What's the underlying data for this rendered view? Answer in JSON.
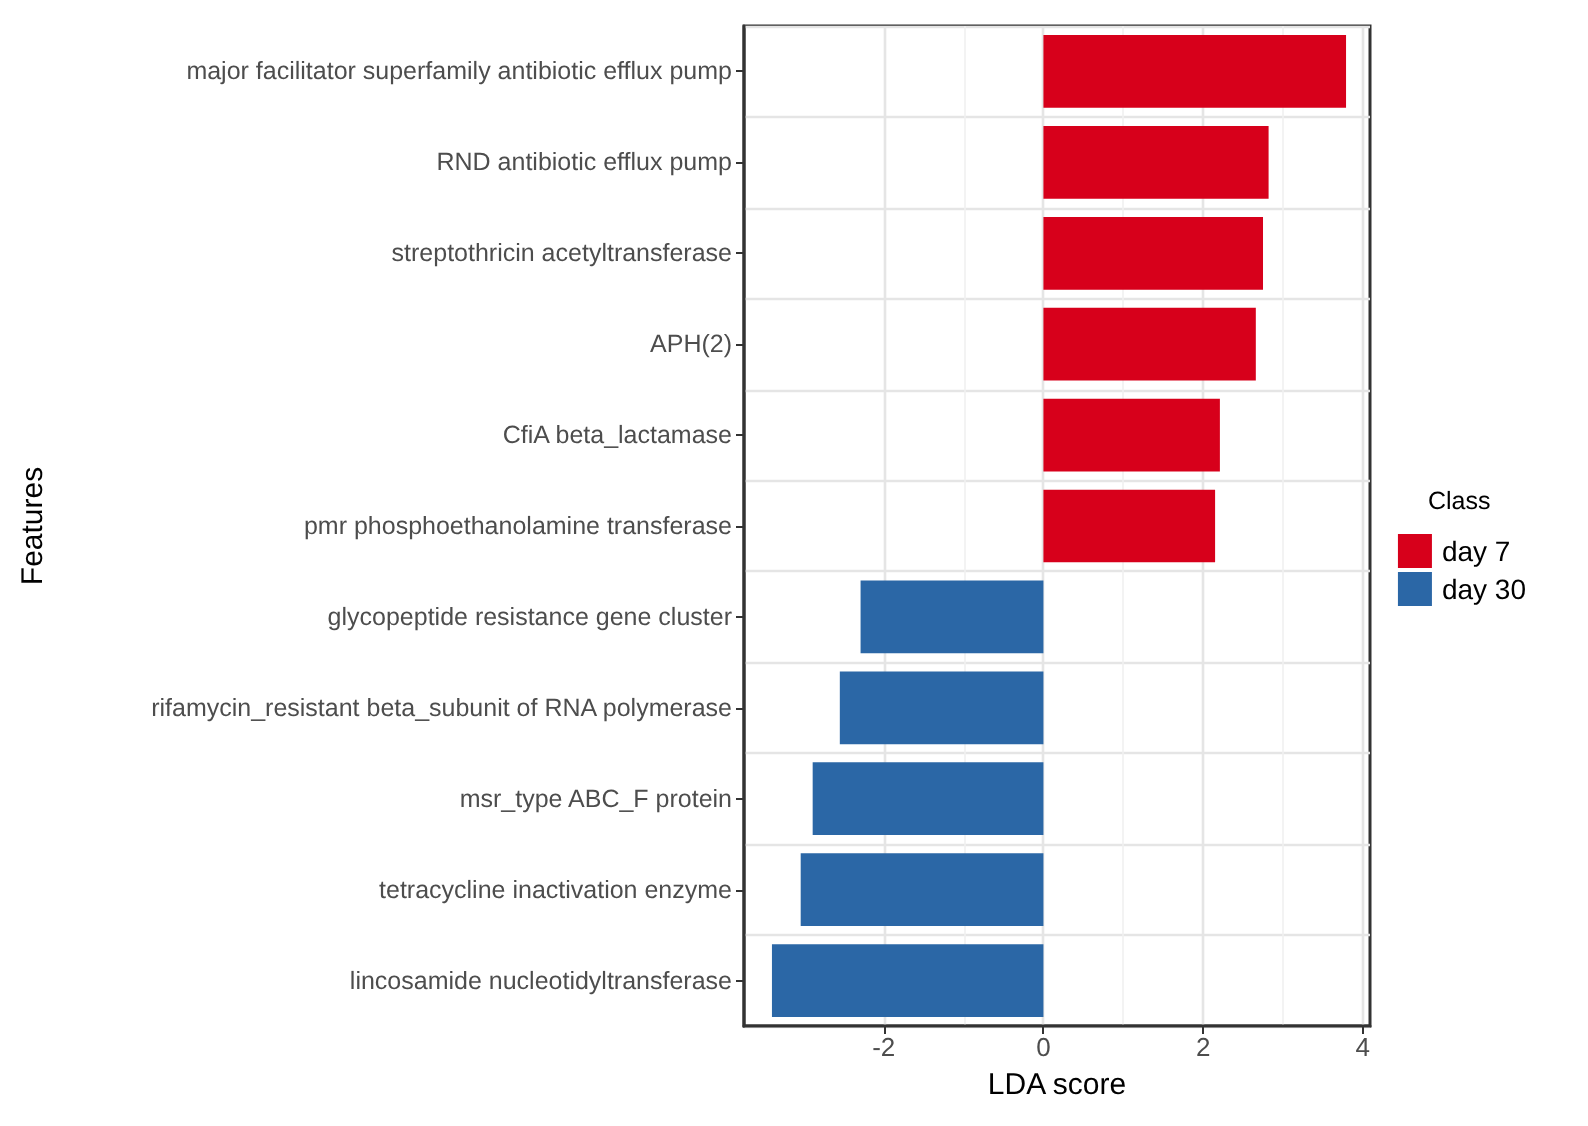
{
  "chart_data": {
    "type": "bar",
    "orientation": "horizontal",
    "stacked": true,
    "xlabel": "LDA score",
    "ylabel": "Features",
    "legend_title": "Class",
    "categories": [
      "major facilitator superfamily antibiotic efflux pump",
      "RND antibiotic efflux pump",
      "streptothricin acetyltransferase",
      "APH(2)",
      "CfiA beta_lactamase",
      "pmr phosphoethanolamine transferase",
      "glycopeptide resistance gene cluster",
      "rifamycin_resistant beta_subunit of RNA polymerase",
      "msr_type ABC_F protein",
      "tetracycline inactivation enzyme",
      "lincosamide nucleotidyltransferase"
    ],
    "series": [
      {
        "name": "day 7",
        "color": "#d7001b",
        "values": [
          3.79,
          2.82,
          2.75,
          2.66,
          2.21,
          2.15,
          null,
          null,
          null,
          null,
          null
        ]
      },
      {
        "name": "day 30",
        "color": "#2b67a6",
        "values": [
          null,
          null,
          null,
          null,
          null,
          null,
          -2.29,
          -2.55,
          -2.89,
          -3.04,
          -3.4
        ]
      }
    ],
    "xlim": [
      -3.75,
      4.09
    ],
    "xticks": [
      -2,
      0,
      2,
      4
    ],
    "grid": true,
    "legend": "right"
  }
}
